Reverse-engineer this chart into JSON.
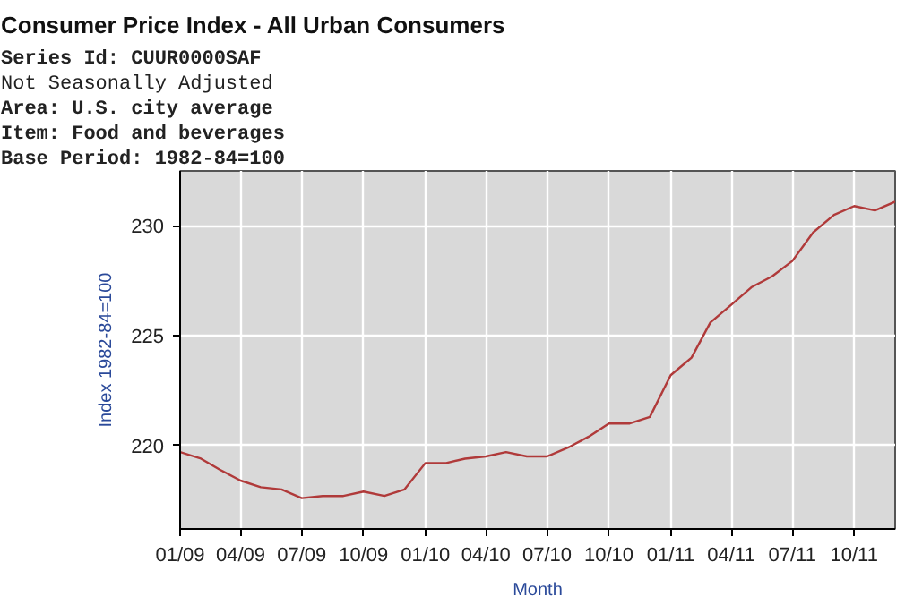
{
  "chart_data": {
    "type": "line",
    "title": "Consumer Price Index - All Urban Consumers",
    "annotations": [
      "Series Id:     CUUR0000SAF",
      "Not Seasonally Adjusted",
      "Area:          U.S. city average",
      "Item:          Food and beverages",
      "Base Period:   1982-84=100"
    ],
    "xlabel": "Month",
    "ylabel": "Index 1982-84=100",
    "x": [
      "2009-01",
      "2009-02",
      "2009-03",
      "2009-04",
      "2009-05",
      "2009-06",
      "2009-07",
      "2009-08",
      "2009-09",
      "2009-10",
      "2009-11",
      "2009-12",
      "2010-01",
      "2010-02",
      "2010-03",
      "2010-04",
      "2010-05",
      "2010-06",
      "2010-07",
      "2010-08",
      "2010-09",
      "2010-10",
      "2010-11",
      "2010-12",
      "2011-01",
      "2011-02",
      "2011-03",
      "2011-04",
      "2011-05",
      "2011-06",
      "2011-07",
      "2011-08",
      "2011-09",
      "2011-10",
      "2011-11",
      "2011-12"
    ],
    "series": [
      {
        "color": "#b03a3a",
        "values": [
          219.7,
          219.4,
          218.9,
          218.4,
          218.1,
          218.0,
          217.6,
          217.7,
          217.7,
          217.9,
          217.7,
          218.0,
          219.2,
          219.2,
          219.4,
          219.5,
          219.7,
          219.5,
          219.5,
          219.9,
          220.4,
          221.0,
          221.0,
          221.3,
          223.2,
          224.0,
          225.6,
          226.4,
          227.2,
          227.7,
          228.4,
          229.7,
          230.5,
          230.9,
          230.7,
          231.1
        ]
      }
    ],
    "xlim": [
      "2009-01",
      "2011-12"
    ],
    "ylim": [
      216.2,
      232.5
    ],
    "xticks": [
      {
        "value": "2009-01",
        "label": "01/09"
      },
      {
        "value": "2009-04",
        "label": "04/09"
      },
      {
        "value": "2009-07",
        "label": "07/09"
      },
      {
        "value": "2009-10",
        "label": "10/09"
      },
      {
        "value": "2010-01",
        "label": "01/10"
      },
      {
        "value": "2010-04",
        "label": "04/10"
      },
      {
        "value": "2010-07",
        "label": "07/10"
      },
      {
        "value": "2010-10",
        "label": "10/10"
      },
      {
        "value": "2011-01",
        "label": "01/11"
      },
      {
        "value": "2011-04",
        "label": "04/11"
      },
      {
        "value": "2011-07",
        "label": "07/11"
      },
      {
        "value": "2011-10",
        "label": "10/11"
      }
    ],
    "yticks": [
      220,
      225,
      230
    ],
    "grid": true,
    "line_style": "solid",
    "marker": "none"
  }
}
